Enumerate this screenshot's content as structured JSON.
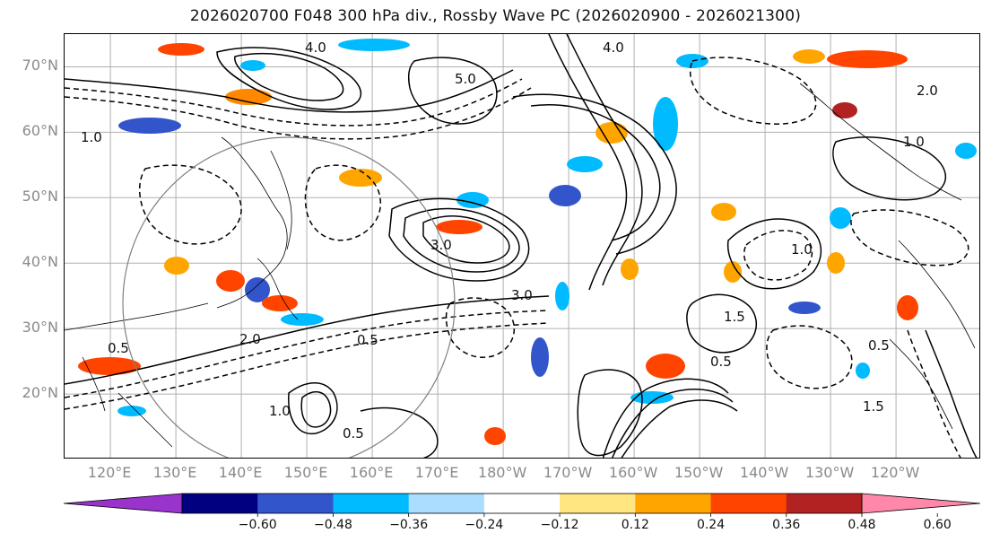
{
  "title": "2026020700 F048 300 hPa div., Rossby Wave PC (2026020900 - 2026021300)",
  "map": {
    "lat_labels": [
      "70°N",
      "60°N",
      "50°N",
      "40°N",
      "30°N",
      "20°N"
    ],
    "lat_values": [
      70,
      60,
      50,
      40,
      30,
      20
    ],
    "lon_labels": [
      "120°E",
      "130°E",
      "140°E",
      "150°E",
      "160°E",
      "170°E",
      "180°W",
      "170°W",
      "160°W",
      "150°W",
      "140°W",
      "130°W",
      "120°W"
    ],
    "lon_values": [
      120,
      130,
      140,
      150,
      160,
      170,
      180,
      190,
      200,
      210,
      220,
      230,
      240
    ],
    "lat_range": [
      10,
      75
    ],
    "lon_range": [
      113,
      253
    ],
    "gridlines": true,
    "contour_labels": [
      "1.0",
      "0.5",
      "3.0",
      "5.0",
      "2.0",
      "1.5",
      "4.0",
      "0.5",
      "3.0",
      "0.5",
      "1.0",
      "2.0",
      "0.5",
      "1.5",
      "1.0",
      "0.5",
      "4.0",
      "1.0"
    ],
    "colors": {
      "coast": "#000000",
      "grid": "#b0b0b0",
      "contour": "#000000"
    }
  },
  "colorbar": {
    "colors": [
      "#9933cc",
      "#000080",
      "#3355cc",
      "#00bbff",
      "#aaddff",
      "#ffffff",
      "#ffe680",
      "#ffa500",
      "#ff4400",
      "#b22222",
      "#ff88aa"
    ],
    "ticks": [
      "−0.60",
      "−0.48",
      "−0.36",
      "−0.24",
      "−0.12",
      "0.12",
      "0.24",
      "0.36",
      "0.48",
      "0.60"
    ],
    "extend": "both"
  }
}
